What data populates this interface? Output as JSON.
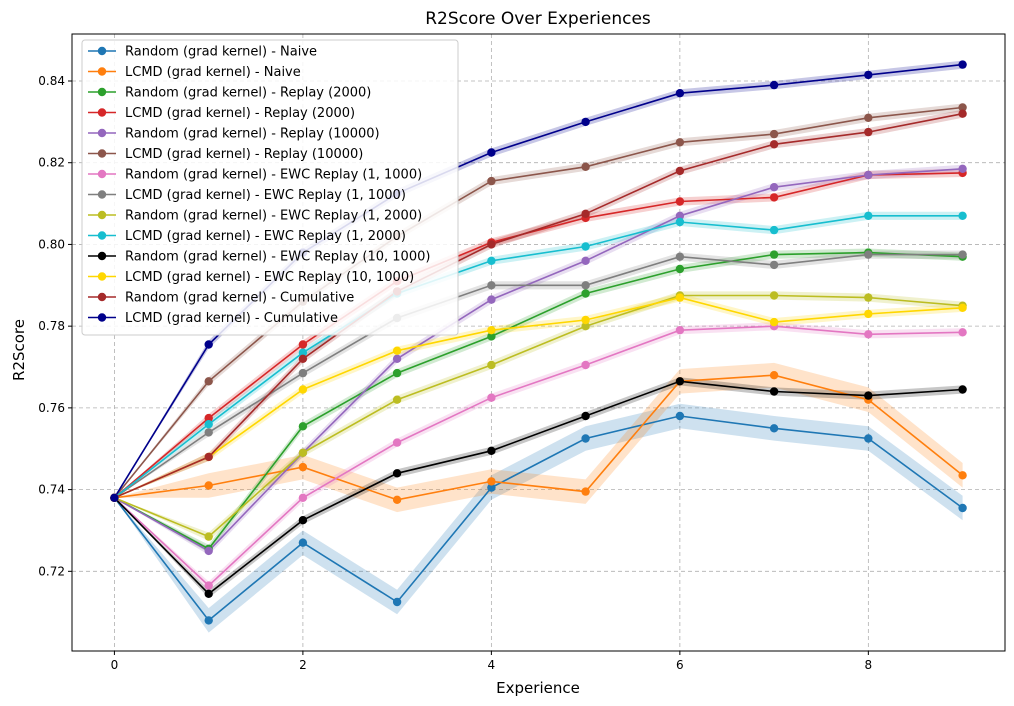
{
  "chart_data": {
    "type": "line",
    "title": "R2Score Over Experiences",
    "xlabel": "Experience",
    "ylabel": "R2Score",
    "x": [
      0,
      1,
      2,
      3,
      4,
      5,
      6,
      7,
      8,
      9
    ],
    "xlim": [
      -0.45,
      9.45
    ],
    "ylim": [
      0.7005,
      0.8515
    ],
    "xticks": [
      0,
      2,
      4,
      6,
      8
    ],
    "yticks": [
      0.72,
      0.74,
      0.76,
      0.78,
      0.8,
      0.82,
      0.84
    ],
    "ytick_labels": [
      "0.72",
      "0.74",
      "0.76",
      "0.78",
      "0.80",
      "0.82",
      "0.84"
    ],
    "grid": true,
    "legend_position": "upper-left",
    "series": [
      {
        "name": "Random (grad kernel) - Naive",
        "color": "#1f77b4",
        "band": 0.003,
        "values": [
          0.738,
          0.708,
          0.727,
          0.7125,
          0.7405,
          0.7525,
          0.758,
          0.755,
          0.7525,
          0.7355
        ]
      },
      {
        "name": "LCMD (grad kernel) - Naive",
        "color": "#ff7f0e",
        "band": 0.003,
        "values": [
          0.738,
          0.741,
          0.7455,
          0.7375,
          0.742,
          0.7395,
          0.7665,
          0.768,
          0.762,
          0.7435
        ]
      },
      {
        "name": "Random (grad kernel) - Replay (2000)",
        "color": "#2ca02c",
        "band": 0.001,
        "values": [
          0.738,
          0.7255,
          0.7555,
          0.7685,
          0.7775,
          0.788,
          0.794,
          0.7975,
          0.798,
          0.797
        ]
      },
      {
        "name": "LCMD (grad kernel) - Replay (2000)",
        "color": "#d62728",
        "band": 0.001,
        "values": [
          0.738,
          0.7575,
          0.7755,
          0.791,
          0.8005,
          0.8065,
          0.8105,
          0.8115,
          0.817,
          0.8175
        ]
      },
      {
        "name": "Random (grad kernel) - Replay (10000)",
        "color": "#9467bd",
        "band": 0.001,
        "values": [
          0.738,
          0.725,
          0.749,
          0.772,
          0.7865,
          0.796,
          0.807,
          0.814,
          0.817,
          0.8185
        ]
      },
      {
        "name": "LCMD (grad kernel) - Replay (10000)",
        "color": "#8c564b",
        "band": 0.001,
        "values": [
          0.738,
          0.7665,
          0.786,
          0.802,
          0.8155,
          0.819,
          0.825,
          0.827,
          0.831,
          0.8335
        ]
      },
      {
        "name": "Random (grad kernel) - EWC Replay (1, 1000)",
        "color": "#e377c2",
        "band": 0.001,
        "values": [
          0.738,
          0.7165,
          0.738,
          0.7515,
          0.7625,
          0.7705,
          0.779,
          0.78,
          0.778,
          0.7785
        ]
      },
      {
        "name": "LCMD (grad kernel) - EWC Replay (1, 1000)",
        "color": "#7f7f7f",
        "band": 0.001,
        "values": [
          0.738,
          0.754,
          0.7685,
          0.782,
          0.79,
          0.79,
          0.797,
          0.795,
          0.7975,
          0.7975
        ]
      },
      {
        "name": "Random (grad kernel) - EWC Replay (1, 2000)",
        "color": "#bcbd22",
        "band": 0.001,
        "values": [
          0.738,
          0.7285,
          0.749,
          0.762,
          0.7705,
          0.78,
          0.7875,
          0.7875,
          0.787,
          0.785
        ]
      },
      {
        "name": "LCMD (grad kernel) - EWC Replay (1, 2000)",
        "color": "#17becf",
        "band": 0.001,
        "values": [
          0.738,
          0.756,
          0.7735,
          0.788,
          0.796,
          0.7995,
          0.8055,
          0.8035,
          0.807,
          0.807
        ]
      },
      {
        "name": "Random (grad kernel) - EWC Replay (10, 1000)",
        "color": "#000000",
        "band": 0.001,
        "values": [
          0.738,
          0.7145,
          0.7325,
          0.744,
          0.7495,
          0.758,
          0.7665,
          0.764,
          0.763,
          0.7645
        ]
      },
      {
        "name": "LCMD (grad kernel) - EWC Replay (10, 1000)",
        "color": "#ffd700",
        "band": 0.001,
        "values": [
          0.738,
          0.748,
          0.7645,
          0.774,
          0.779,
          0.7815,
          0.787,
          0.781,
          0.783,
          0.7845
        ]
      },
      {
        "name": "Random (grad kernel) - Cumulative",
        "color": "#a52a2a",
        "band": 0.001,
        "values": [
          0.738,
          0.748,
          0.772,
          0.7885,
          0.8,
          0.8075,
          0.818,
          0.8245,
          0.8275,
          0.832
        ]
      },
      {
        "name": "LCMD (grad kernel) - Cumulative",
        "color": "#00008b",
        "band": 0.001,
        "values": [
          0.738,
          0.7755,
          0.798,
          0.8125,
          0.8225,
          0.83,
          0.837,
          0.839,
          0.8415,
          0.844
        ]
      }
    ]
  }
}
